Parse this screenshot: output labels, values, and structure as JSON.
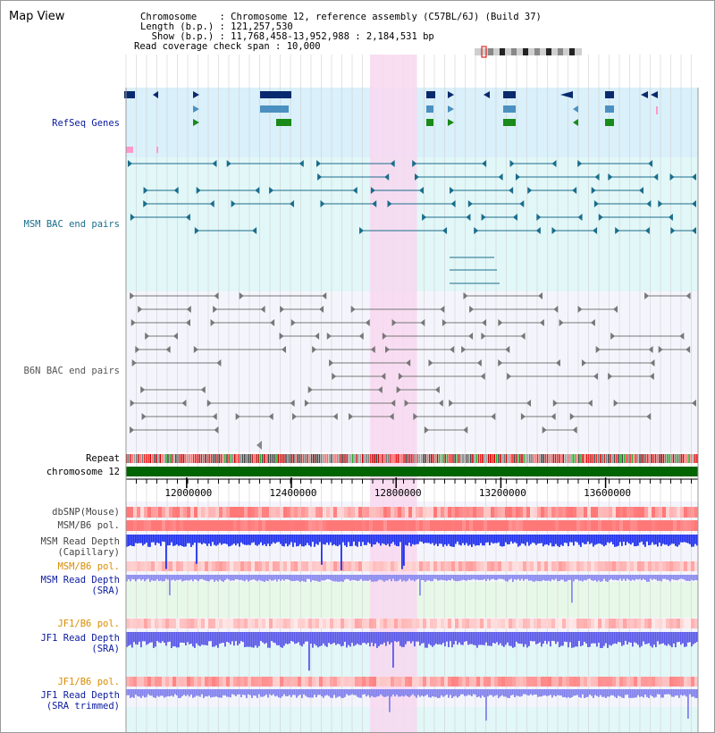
{
  "title": "Map View",
  "header": {
    "rows": [
      {
        "key": "Chromosome    ",
        "value": "Chromosome 12, reference assembly (C57BL/6J) (Build 37)"
      },
      {
        "key": "Length (b.p.) ",
        "value": "121,257,530"
      },
      {
        "key": "  Show (b.p.) ",
        "value": "11,768,458-13,952,988 : 2,184,531 bp"
      },
      {
        "key": "Read coverage check span",
        "value": "10,000"
      }
    ]
  },
  "tracks": {
    "refseq": {
      "label": "RefSeq Genes",
      "color": "#0a1a9e"
    },
    "msm_bac": {
      "label": "MSM BAC end pairs",
      "color": "#1a6d8c"
    },
    "b6n_bac": {
      "label": "B6N BAC end pairs",
      "color": "#555555"
    },
    "repeat": {
      "label": "Repeat"
    },
    "chromosome": {
      "label": "chromosome 12",
      "color": "#006400"
    },
    "dbsnp": {
      "label": "dbSNP(Mouse)"
    },
    "msm_pol1": {
      "label": "MSM/B6 pol."
    },
    "msm_read_cap": {
      "label_line1": "MSM Read Depth",
      "label_line2": "(Capillary)"
    },
    "msm_pol2": {
      "label": "MSM/B6 pol.",
      "color": "#d98c00"
    },
    "msm_read_sra": {
      "label_line1": "MSM Read Depth",
      "label_line2": "(SRA)",
      "color": "#0a1a9e"
    },
    "jf1_pol1": {
      "label": "JF1/B6 pol.",
      "color": "#d98c00"
    },
    "jf1_read_sra": {
      "label_line1": "JF1 Read Depth",
      "label_line2": "(SRA)",
      "color": "#0a1a9e"
    },
    "jf1_pol2": {
      "label": "JF1/B6 pol.",
      "color": "#d98c00"
    },
    "jf1_read_trim": {
      "label_line1": "JF1 Read Depth",
      "label_line2": "(SRA trimmed)",
      "color": "#0a1a9e"
    }
  },
  "axis": {
    "ticks": [
      "12000000",
      "12400000",
      "12800000",
      "13200000",
      "13600000"
    ],
    "tick_values": [
      12000000,
      12400000,
      12800000,
      13200000,
      13600000
    ],
    "range": [
      11768458,
      13952988
    ]
  },
  "highlight": {
    "start": 12700000,
    "end": 12880000,
    "color": "#f8d8f0"
  },
  "colors": {
    "refseq_bg": "#daf0fa",
    "msm_bg": "#e2f7f7",
    "plot_bg": "#f4f5fc",
    "grid": "#d0d0d0"
  }
}
